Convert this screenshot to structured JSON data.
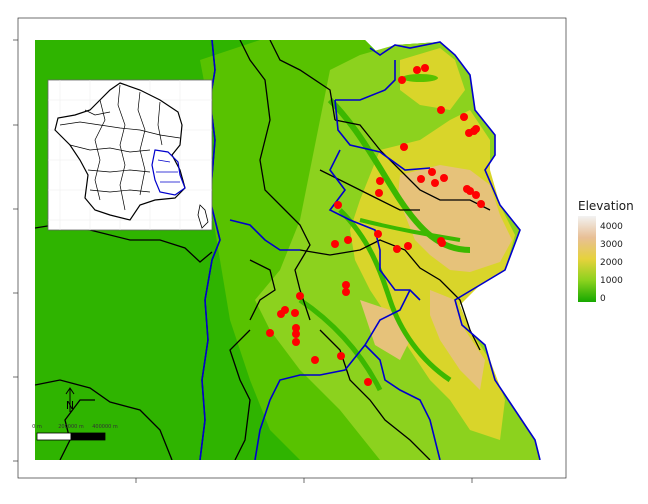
{
  "legend": {
    "title": "Elevation",
    "labels": [
      "4000",
      "3000",
      "2000",
      "1000",
      "0"
    ],
    "colors": [
      "#f2f2f2",
      "#e8bf96",
      "#e6d23c",
      "#8cd21e",
      "#16a800"
    ]
  },
  "scalebar": {
    "north_label": "N",
    "tick_labels": [
      "0 m",
      "200000 m",
      "400000 m"
    ]
  },
  "colors": {
    "department_border": "#000000",
    "region_border": "#0000cc",
    "site_points": "#ff0000",
    "lowland": "#16a800",
    "highland": "#e6c27a"
  },
  "points_note_free": [
    [
      402,
      80
    ],
    [
      417,
      70
    ],
    [
      425,
      68
    ],
    [
      441,
      110
    ],
    [
      464,
      117
    ],
    [
      469,
      133
    ],
    [
      474,
      131
    ],
    [
      476,
      129
    ],
    [
      404,
      147
    ],
    [
      380,
      181
    ],
    [
      379,
      193
    ],
    [
      421,
      179
    ],
    [
      432,
      172
    ],
    [
      435,
      183
    ],
    [
      444,
      178
    ],
    [
      467,
      189
    ],
    [
      470,
      191
    ],
    [
      476,
      195
    ],
    [
      481,
      204
    ],
    [
      338,
      205
    ],
    [
      348,
      240
    ],
    [
      335,
      244
    ],
    [
      378,
      234
    ],
    [
      397,
      249
    ],
    [
      408,
      246
    ],
    [
      441,
      241
    ],
    [
      442,
      243
    ],
    [
      346,
      285
    ],
    [
      346,
      292
    ],
    [
      300,
      296
    ],
    [
      295,
      313
    ],
    [
      296,
      328
    ],
    [
      296,
      334
    ],
    [
      296,
      342
    ],
    [
      285,
      310
    ],
    [
      281,
      314
    ],
    [
      270,
      333
    ],
    [
      315,
      360
    ],
    [
      341,
      356
    ],
    [
      368,
      382
    ]
  ]
}
